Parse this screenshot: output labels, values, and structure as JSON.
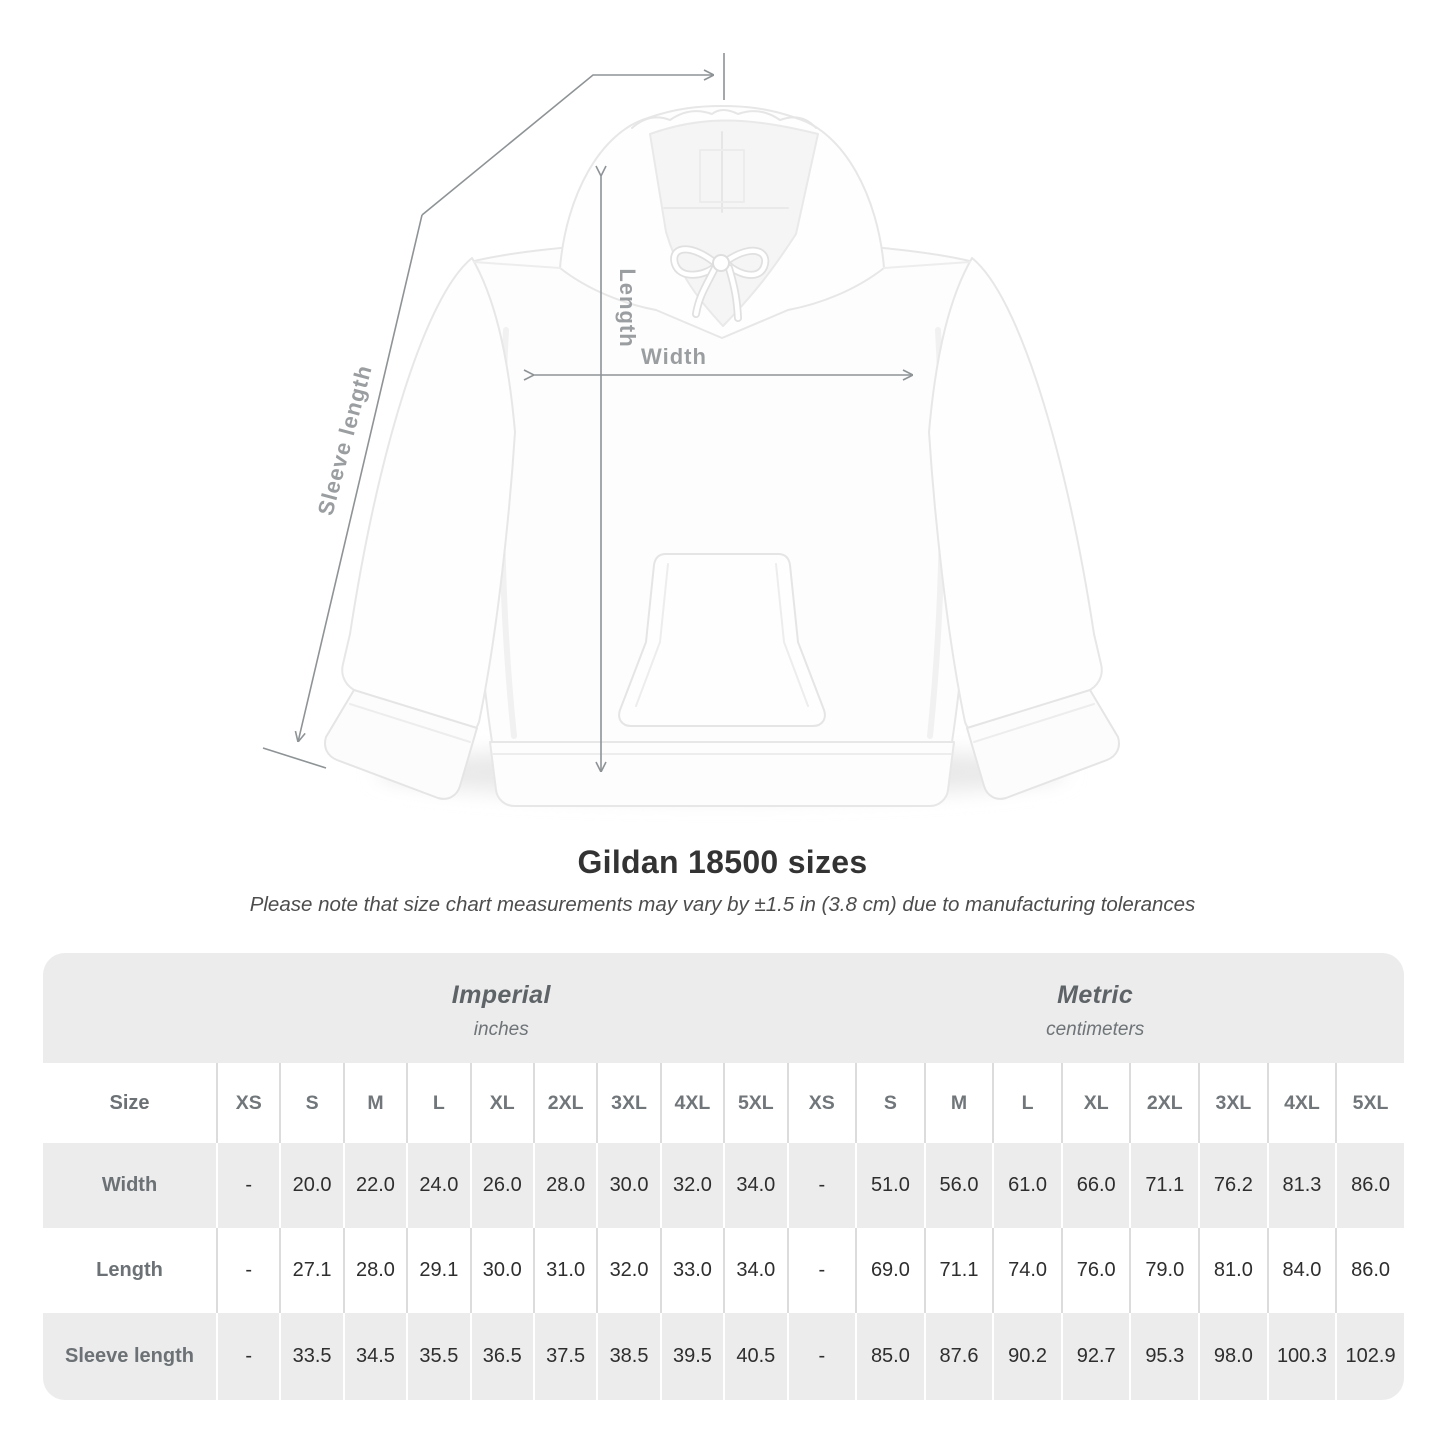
{
  "title": "Gildan 18500 sizes",
  "subtitle": "Please note that size chart measurements may vary by ±1.5 in (3.8 cm) due to manufacturing tolerances",
  "diagram": {
    "product": "white pullover hoodie, front view",
    "length_label": "Length",
    "width_label": "Width",
    "sleeve_label": "Sleeve length"
  },
  "table": {
    "size_label": "Size",
    "unit_groups": [
      {
        "name": "Imperial",
        "unit": "inches"
      },
      {
        "name": "Metric",
        "unit": "centimeters"
      }
    ],
    "sizes": [
      "XS",
      "S",
      "M",
      "L",
      "XL",
      "2XL",
      "3XL",
      "4XL",
      "5XL"
    ],
    "rows": [
      {
        "label": "Width",
        "imperial": [
          "-",
          "20.0",
          "22.0",
          "24.0",
          "26.0",
          "28.0",
          "30.0",
          "32.0",
          "34.0"
        ],
        "metric": [
          "-",
          "51.0",
          "56.0",
          "61.0",
          "66.0",
          "71.1",
          "76.2",
          "81.3",
          "86.0"
        ]
      },
      {
        "label": "Length",
        "imperial": [
          "-",
          "27.1",
          "28.0",
          "29.1",
          "30.0",
          "31.0",
          "32.0",
          "33.0",
          "34.0"
        ],
        "metric": [
          "-",
          "69.0",
          "71.1",
          "74.0",
          "76.0",
          "79.0",
          "81.0",
          "84.0",
          "86.0"
        ]
      },
      {
        "label": "Sleeve length",
        "imperial": [
          "-",
          "33.5",
          "34.5",
          "35.5",
          "36.5",
          "37.5",
          "38.5",
          "39.5",
          "40.5"
        ],
        "metric": [
          "-",
          "85.0",
          "87.6",
          "90.2",
          "92.7",
          "95.3",
          "98.0",
          "100.3",
          "102.9"
        ]
      }
    ]
  },
  "chart_data": {
    "type": "table",
    "title": "Gildan 18500 sizes",
    "note": "Please note that size chart measurements may vary by ±1.5 in (3.8 cm) due to manufacturing tolerances",
    "columns": [
      "Size",
      "XS",
      "S",
      "M",
      "L",
      "XL",
      "2XL",
      "3XL",
      "4XL",
      "5XL"
    ],
    "imperial_unit": "inches",
    "metric_unit": "centimeters",
    "imperial_rows": [
      [
        "Width",
        null,
        20.0,
        22.0,
        24.0,
        26.0,
        28.0,
        30.0,
        32.0,
        34.0
      ],
      [
        "Length",
        null,
        27.1,
        28.0,
        29.1,
        30.0,
        31.0,
        32.0,
        33.0,
        34.0
      ],
      [
        "Sleeve length",
        null,
        33.5,
        34.5,
        35.5,
        36.5,
        37.5,
        38.5,
        39.5,
        40.5
      ]
    ],
    "metric_rows": [
      [
        "Width",
        null,
        51.0,
        56.0,
        61.0,
        66.0,
        71.1,
        76.2,
        81.3,
        86.0
      ],
      [
        "Length",
        null,
        69.0,
        71.1,
        74.0,
        76.0,
        79.0,
        81.0,
        84.0,
        86.0
      ],
      [
        "Sleeve length",
        null,
        85.0,
        87.6,
        90.2,
        92.7,
        95.3,
        98.0,
        100.3,
        102.9
      ]
    ]
  },
  "colors": {
    "table_bg": "#ececec",
    "row_white": "#ffffff",
    "separator_light": "#dcdcdc",
    "measure_line": "#8e9396",
    "measure_label": "#9b9ea0",
    "header_text": "#70767a",
    "value_text": "#2e2e2e",
    "title_text": "#333333"
  }
}
